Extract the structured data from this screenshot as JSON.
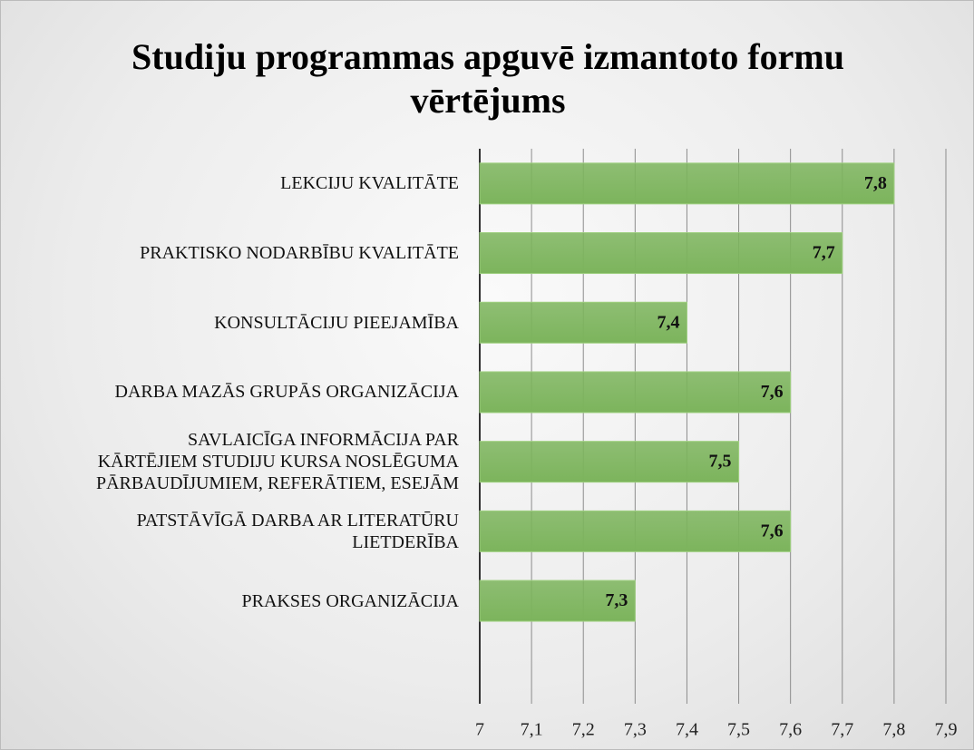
{
  "chart_data": {
    "type": "bar",
    "orientation": "horizontal",
    "title": "Studiju programmas apguvē izmantoto formu vērtējums",
    "categories": [
      "LEKCIJU KVALITĀTE",
      "PRAKTISKO NODARBĪBU KVALITĀTE",
      "KONSULTĀCIJU PIEEJAMĪBA",
      "DARBA MAZĀS GRUPĀS ORGANIZĀCIJA",
      "SAVLAICĪGA INFORMĀCIJA PAR\nKĀRTĒJIEM STUDIJU KURSA NOSLĒGUMA\nPĀRBAUDĪJUMIEM, REFERĀTIEM, ESEJĀM",
      "PATSTĀVĪGĀ DARBA AR LITERATŪRU\nLIETDERĪBA",
      "PRAKSES ORGANIZĀCIJA"
    ],
    "values": [
      7.8,
      7.7,
      7.4,
      7.6,
      7.5,
      7.6,
      7.3
    ],
    "value_labels": [
      "7,8",
      "7,7",
      "7,4",
      "7,6",
      "7,5",
      "7,6",
      "7,3"
    ],
    "color": "#7cb45c",
    "xlim": [
      7,
      7.9
    ],
    "xticks": [
      7,
      {
        "value": 7.1,
        "label": "7,1"
      },
      {
        "value": 7.2,
        "label": "7,2"
      },
      {
        "value": 7.3,
        "label": "7,3"
      },
      {
        "value": 7.4,
        "label": "7,4"
      },
      {
        "value": 7.5,
        "label": "7,5"
      },
      {
        "value": 7.6,
        "label": "7,6"
      },
      {
        "value": 7.7,
        "label": "7,7"
      },
      {
        "value": 7.8,
        "label": "7,8"
      },
      {
        "value": 7.9,
        "label": "7,9"
      }
    ],
    "grid": true
  }
}
